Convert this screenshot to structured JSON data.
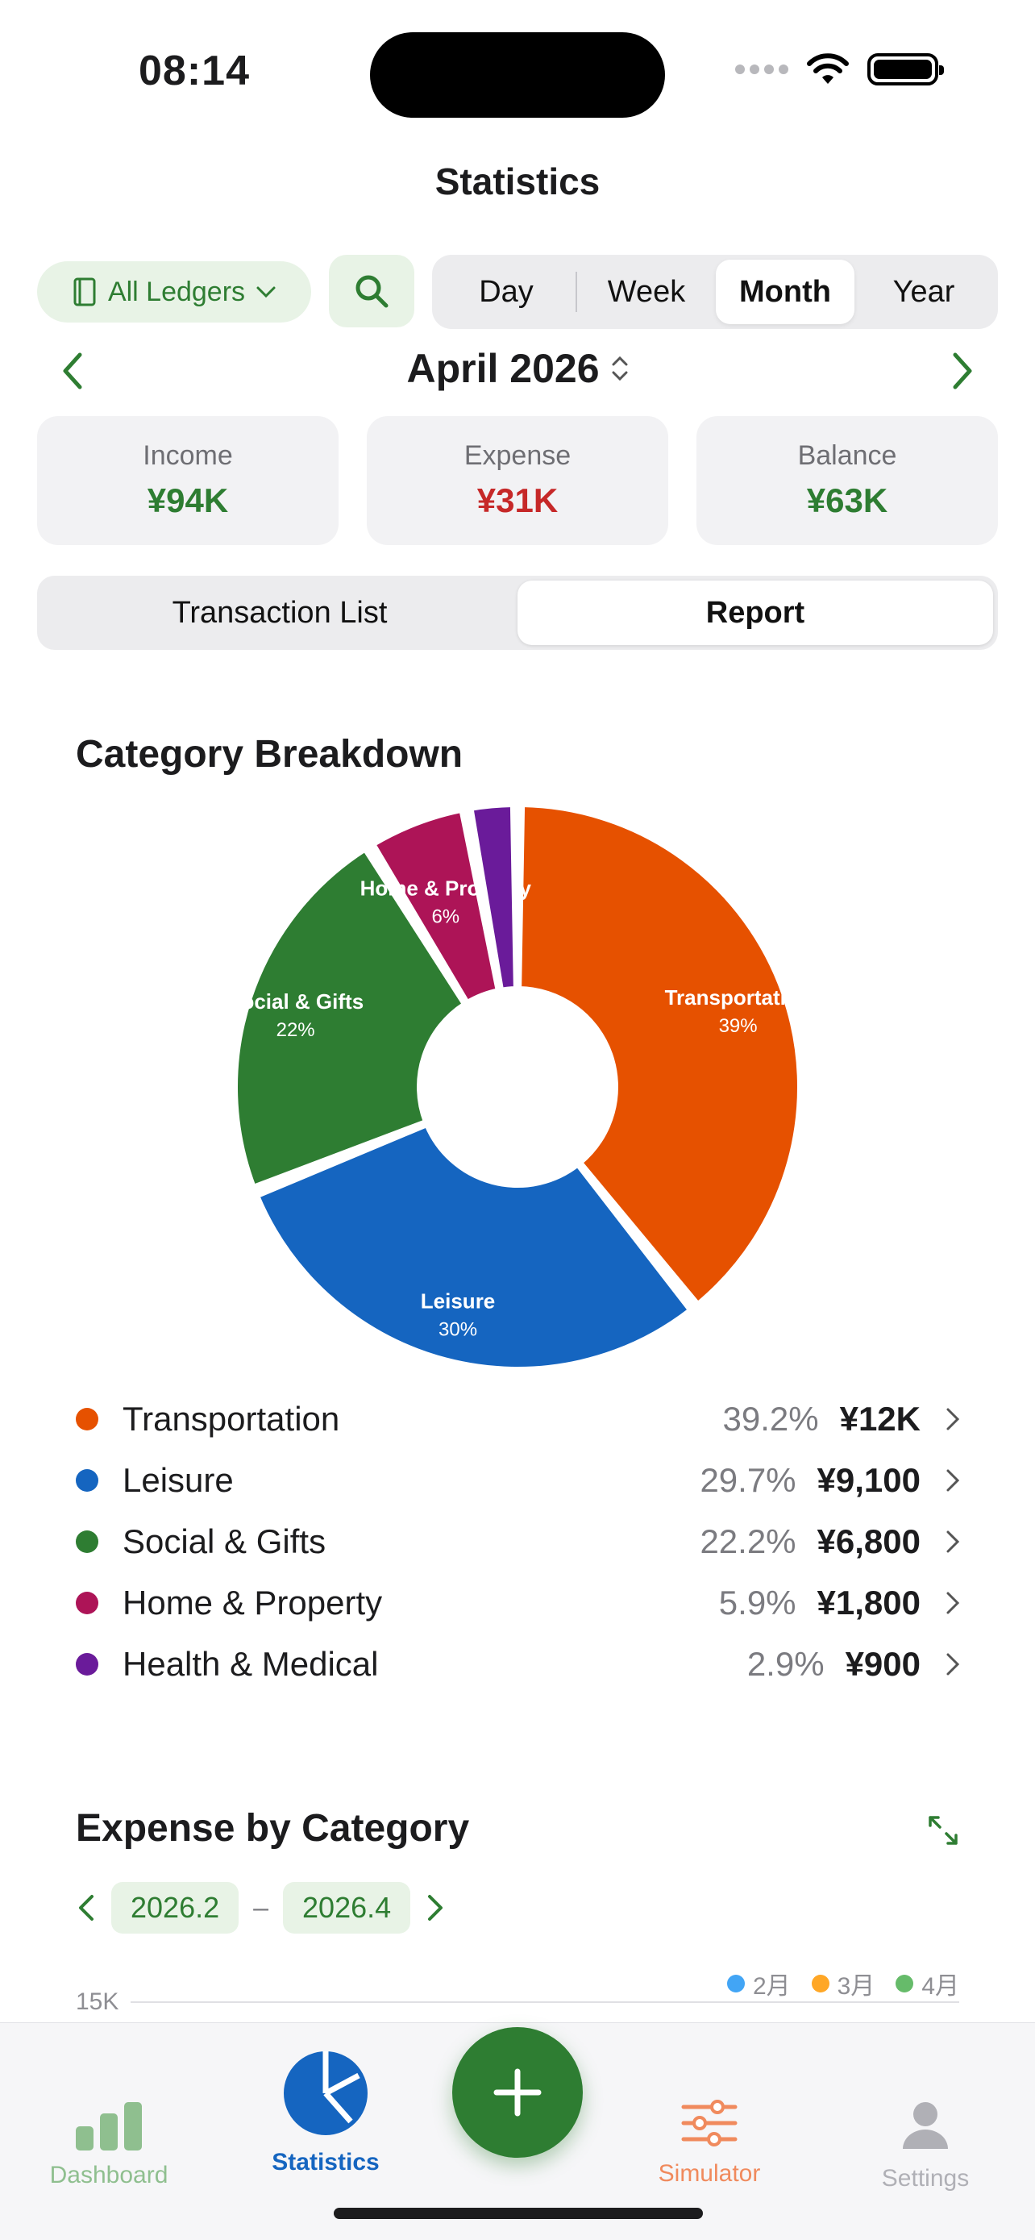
{
  "status_bar": {
    "time": "08:14"
  },
  "header": {
    "title": "Statistics"
  },
  "filters": {
    "ledger_label": "All Ledgers",
    "periods": [
      "Day",
      "Week",
      "Month",
      "Year"
    ],
    "active_period": "Month"
  },
  "period_nav": {
    "label": "April 2026"
  },
  "summary": {
    "income": {
      "label": "Income",
      "value": "¥94K",
      "color": "#2e7d32"
    },
    "expense": {
      "label": "Expense",
      "value": "¥31K",
      "color": "#c62828"
    },
    "balance": {
      "label": "Balance",
      "value": "¥63K",
      "color": "#2e7d32"
    }
  },
  "view_tabs": {
    "list": "Transaction List",
    "report": "Report",
    "active": "Report"
  },
  "category_breakdown": {
    "title": "Category Breakdown",
    "items": [
      {
        "name": "Transportation",
        "percent": "39.2%",
        "amount": "¥12K",
        "color": "#e65100"
      },
      {
        "name": "Leisure",
        "percent": "29.7%",
        "amount": "¥9,100",
        "color": "#1565c0"
      },
      {
        "name": "Social & Gifts",
        "percent": "22.2%",
        "amount": "¥6,800",
        "color": "#2e7d32"
      },
      {
        "name": "Home & Property",
        "percent": "5.9%",
        "amount": "¥1,800",
        "color": "#ad1457"
      },
      {
        "name": "Health & Medical",
        "percent": "2.9%",
        "amount": "¥900",
        "color": "#6a1b9a"
      }
    ]
  },
  "chart_data": {
    "type": "pie",
    "categories": [
      "Transportation",
      "Leisure",
      "Social & Gifts",
      "Home & Property",
      "Health & Medical"
    ],
    "values": [
      39.2,
      29.7,
      22.2,
      5.9,
      2.9
    ],
    "slice_labels": [
      {
        "name": "Transportation",
        "pct": "39%"
      },
      {
        "name": "Leisure",
        "pct": "30%"
      },
      {
        "name": "Social & Gifts",
        "pct": "22%"
      },
      {
        "name": "Home & Property",
        "pct": "6%"
      },
      {
        "name": "",
        "pct": ""
      }
    ],
    "colors": [
      "#e65100",
      "#1565c0",
      "#2e7d32",
      "#ad1457",
      "#6a1b9a"
    ]
  },
  "expense_by_category": {
    "title": "Expense by Category",
    "range_start": "2026.2",
    "range_end": "2026.4",
    "range_separator": "–",
    "legend": [
      {
        "label": "2月",
        "color": "#42a5f5"
      },
      {
        "label": "3月",
        "color": "#ffa726"
      },
      {
        "label": "4月",
        "color": "#66bb6a"
      }
    ],
    "y_tick_top": "15K"
  },
  "tabbar": {
    "dashboard": "Dashboard",
    "statistics": "Statistics",
    "simulator": "Simulator",
    "settings": "Settings"
  }
}
